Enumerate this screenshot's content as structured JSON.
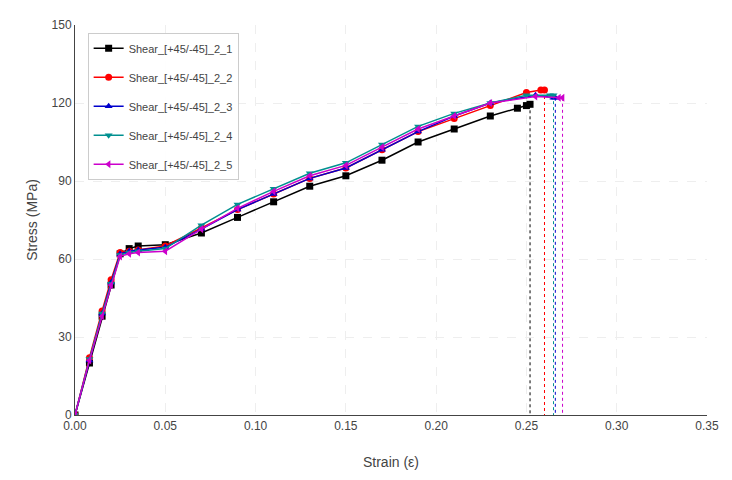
{
  "chart_data": {
    "type": "line",
    "xlabel": "Strain (ε)",
    "ylabel": "Stress (MPa)",
    "xlim": [
      0.0,
      0.35
    ],
    "ylim": [
      0,
      150
    ],
    "xticks": [
      {
        "value": 0.0,
        "label": "0.00"
      },
      {
        "value": 0.05,
        "label": "0.05"
      },
      {
        "value": 0.1,
        "label": "0.10"
      },
      {
        "value": 0.15,
        "label": "0.15"
      },
      {
        "value": 0.2,
        "label": "0.20"
      },
      {
        "value": 0.25,
        "label": "0.25"
      },
      {
        "value": 0.3,
        "label": "0.30"
      },
      {
        "value": 0.35,
        "label": "0.35"
      }
    ],
    "yticks": [
      0,
      30,
      60,
      90,
      120,
      150
    ],
    "grid": true,
    "legend": "upper left",
    "series": [
      {
        "name": "Shear_[+45/-45]_2_1",
        "color": "#000000",
        "marker": "square",
        "x": [
          0.0,
          0.008,
          0.015,
          0.02,
          0.025,
          0.03,
          0.035,
          0.05,
          0.07,
          0.09,
          0.11,
          0.13,
          0.15,
          0.17,
          0.19,
          0.21,
          0.23,
          0.245,
          0.25,
          0.252,
          0.252
        ],
        "values": [
          0.0,
          20.0,
          38.0,
          50.0,
          62.0,
          64.0,
          65.0,
          65.5,
          70.0,
          76.0,
          82.0,
          88.0,
          92.0,
          98.0,
          105.0,
          110.0,
          115.0,
          118.0,
          119.0,
          119.5,
          0.0
        ]
      },
      {
        "name": "Shear_[+45/-45]_2_2",
        "color": "#ff0000",
        "marker": "circle",
        "x": [
          0.0,
          0.008,
          0.015,
          0.02,
          0.025,
          0.03,
          0.035,
          0.05,
          0.07,
          0.09,
          0.11,
          0.13,
          0.15,
          0.17,
          0.19,
          0.21,
          0.23,
          0.25,
          0.258,
          0.26,
          0.26
        ],
        "values": [
          0.0,
          22.0,
          40.0,
          52.0,
          62.5,
          63.0,
          63.5,
          65.0,
          72.0,
          79.0,
          85.0,
          91.0,
          95.0,
          102.0,
          109.0,
          114.0,
          119.0,
          124.0,
          125.0,
          125.0,
          0.0
        ]
      },
      {
        "name": "Shear_[+45/-45]_2_3",
        "color": "#0000cc",
        "marker": "triangle-up",
        "x": [
          0.0,
          0.008,
          0.015,
          0.02,
          0.025,
          0.03,
          0.035,
          0.05,
          0.07,
          0.09,
          0.11,
          0.13,
          0.15,
          0.17,
          0.19,
          0.21,
          0.23,
          0.255,
          0.265,
          0.266,
          0.266
        ],
        "values": [
          0.0,
          21.0,
          39.0,
          51.0,
          62.0,
          63.0,
          63.5,
          64.5,
          71.5,
          79.0,
          85.0,
          91.0,
          95.0,
          102.0,
          109.0,
          115.0,
          120.0,
          123.0,
          122.0,
          122.0,
          0.0
        ]
      },
      {
        "name": "Shear_[+45/-45]_2_4",
        "color": "#009090",
        "marker": "triangle-down",
        "x": [
          0.0,
          0.008,
          0.015,
          0.02,
          0.025,
          0.03,
          0.035,
          0.05,
          0.07,
          0.09,
          0.11,
          0.13,
          0.15,
          0.17,
          0.19,
          0.21,
          0.23,
          0.25,
          0.263,
          0.265,
          0.265
        ],
        "values": [
          0.0,
          21.5,
          39.0,
          50.5,
          61.5,
          62.5,
          63.0,
          64.0,
          73.0,
          81.0,
          87.0,
          93.0,
          97.0,
          104.0,
          111.0,
          116.0,
          120.0,
          123.0,
          123.0,
          123.0,
          0.0
        ]
      },
      {
        "name": "Shear_[+45/-45]_2_5",
        "color": "#cc00cc",
        "marker": "triangle-left",
        "x": [
          0.0,
          0.008,
          0.015,
          0.02,
          0.025,
          0.03,
          0.035,
          0.05,
          0.07,
          0.09,
          0.11,
          0.13,
          0.15,
          0.17,
          0.19,
          0.21,
          0.23,
          0.255,
          0.268,
          0.27,
          0.27
        ],
        "values": [
          0.0,
          21.0,
          38.0,
          50.0,
          61.0,
          62.0,
          62.5,
          63.0,
          71.5,
          79.5,
          86.0,
          92.0,
          96.0,
          103.0,
          110.0,
          115.0,
          120.0,
          122.5,
          122.0,
          122.0,
          0.0
        ]
      }
    ]
  }
}
